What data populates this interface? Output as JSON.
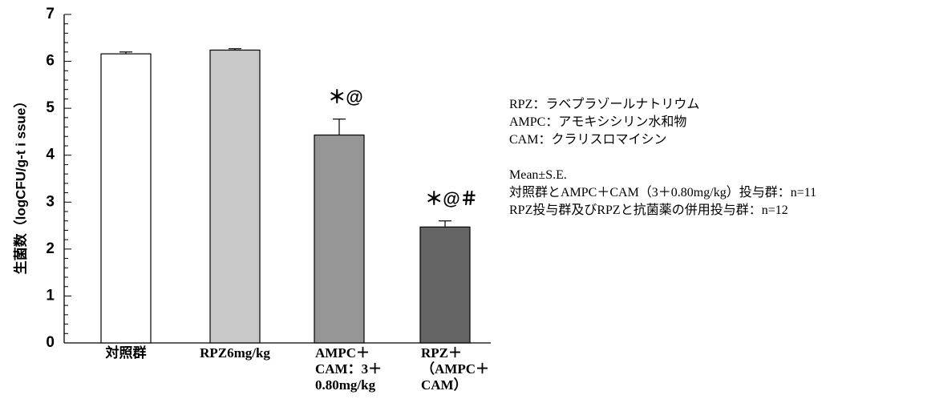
{
  "chart_data": {
    "type": "bar",
    "ylabel": "生菌数（logCFU/g-t i ssue）",
    "ylim": [
      0,
      7
    ],
    "yticks": [
      "0",
      "1",
      "2",
      "3",
      "4",
      "5",
      "6",
      "7"
    ],
    "grid": false,
    "categories": [
      [
        "対照群"
      ],
      [
        "RPZ6mg/kg"
      ],
      [
        "AMPC＋",
        "CAM：3＋",
        "0.80mg/kg"
      ],
      [
        "RPZ＋",
        "（AMPC＋",
        "CAM）"
      ]
    ],
    "values": [
      6.16,
      6.24,
      4.43,
      2.47
    ],
    "errors": [
      0.04,
      0.03,
      0.34,
      0.13
    ],
    "significance": [
      "",
      "",
      "＊@",
      "＊@＃"
    ],
    "colors": [
      "#ffffff",
      "#c8c8c8",
      "#969696",
      "#646464"
    ]
  },
  "legend": {
    "abbrev": [
      "RPZ：ラベプラゾールナトリウム",
      "AMPC：アモキシシリン水和物",
      "CAM：クラリスロマイシン"
    ],
    "stats": [
      "Mean±S.E.",
      "対照群とAMPC＋CAM（3＋0.80mg/kg）投与群：n=11",
      "RPZ投与群及びRPZと抗菌薬の併用投与群：n=12"
    ]
  }
}
